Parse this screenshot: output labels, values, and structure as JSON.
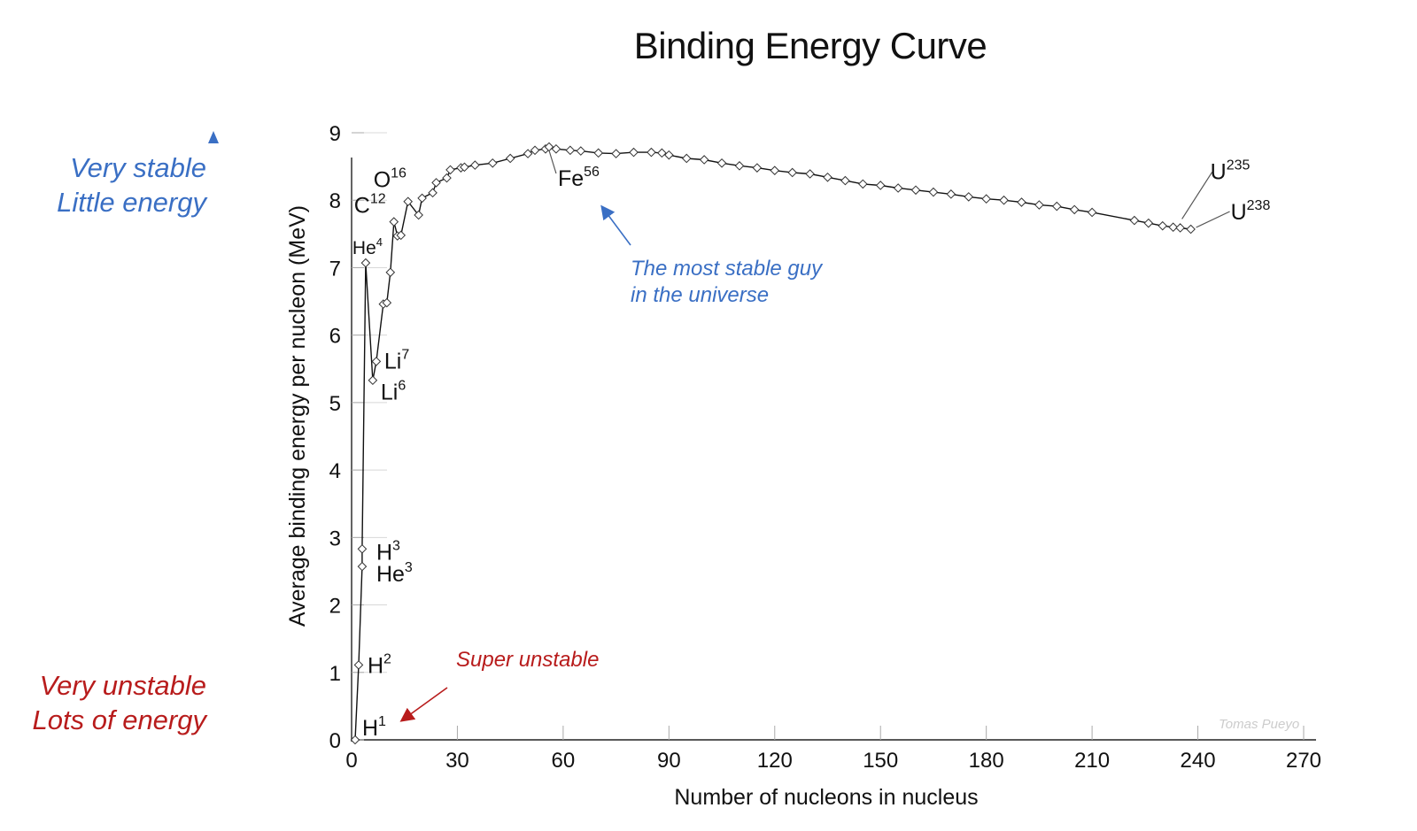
{
  "title": "Binding Energy Curve",
  "stability_scale": {
    "top_line1": "Very stable",
    "top_line2": "Little energy",
    "bottom_line1": "Very unstable",
    "bottom_line2": "Lots of energy",
    "top_color": "#3a6fc4",
    "bottom_color": "#b81c1c"
  },
  "annotations": {
    "most_stable_line1": "The most stable guy",
    "most_stable_line2": "in the universe",
    "super_unstable": "Super unstable",
    "watermark": "Tomas Pueyo"
  },
  "chart_data": {
    "type": "line",
    "title": "Binding Energy Curve",
    "xlabel": "Number of nucleons in nucleus",
    "ylabel": "Average binding energy per nucleon (MeV)",
    "xlim": [
      0,
      270
    ],
    "ylim": [
      0,
      9
    ],
    "xticks": [
      0,
      30,
      60,
      90,
      120,
      150,
      180,
      210,
      240,
      270
    ],
    "yticks": [
      0,
      1,
      2,
      3,
      4,
      5,
      6,
      7,
      8,
      9
    ],
    "series": [
      {
        "name": "Binding energy per nucleon",
        "x": [
          1,
          2,
          3,
          3,
          4,
          6,
          7,
          9,
          10,
          11,
          12,
          13,
          14,
          16,
          19,
          20,
          23,
          24,
          27,
          28,
          31,
          32,
          35,
          40,
          45,
          50,
          52,
          55,
          56,
          58,
          62,
          65,
          70,
          75,
          80,
          85,
          88,
          90,
          95,
          100,
          105,
          110,
          115,
          120,
          125,
          130,
          135,
          140,
          145,
          150,
          155,
          160,
          165,
          170,
          175,
          180,
          185,
          190,
          195,
          200,
          205,
          210,
          222,
          226,
          230,
          233,
          235,
          238
        ],
        "y": [
          0,
          1.11,
          2.57,
          2.83,
          7.07,
          5.33,
          5.61,
          6.46,
          6.48,
          6.93,
          7.68,
          7.47,
          7.48,
          7.98,
          7.78,
          8.03,
          8.11,
          8.26,
          8.33,
          8.45,
          8.48,
          8.49,
          8.52,
          8.55,
          8.62,
          8.69,
          8.74,
          8.76,
          8.79,
          8.76,
          8.74,
          8.73,
          8.7,
          8.69,
          8.71,
          8.71,
          8.7,
          8.67,
          8.62,
          8.6,
          8.55,
          8.51,
          8.48,
          8.44,
          8.41,
          8.39,
          8.34,
          8.29,
          8.24,
          8.22,
          8.18,
          8.15,
          8.12,
          8.09,
          8.05,
          8.02,
          8.0,
          7.97,
          7.93,
          7.91,
          7.86,
          7.82,
          7.7,
          7.66,
          7.62,
          7.6,
          7.59,
          7.57
        ]
      }
    ],
    "labels": [
      {
        "sym": "H",
        "sup": "1",
        "x": 1,
        "y": 0
      },
      {
        "sym": "H",
        "sup": "2",
        "x": 2,
        "y": 1.11
      },
      {
        "sym": "H",
        "sup": "3",
        "x": 3,
        "y": 2.83
      },
      {
        "sym": "He",
        "sup": "3",
        "x": 3,
        "y": 2.57
      },
      {
        "sym": "He",
        "sup": "4",
        "x": 4,
        "y": 7.07
      },
      {
        "sym": "Li",
        "sup": "6",
        "x": 6,
        "y": 5.33
      },
      {
        "sym": "Li",
        "sup": "7",
        "x": 7,
        "y": 5.61
      },
      {
        "sym": "C",
        "sup": "12",
        "x": 12,
        "y": 7.68
      },
      {
        "sym": "O",
        "sup": "16",
        "x": 16,
        "y": 7.98
      },
      {
        "sym": "Fe",
        "sup": "56",
        "x": 56,
        "y": 8.79
      },
      {
        "sym": "U",
        "sup": "235",
        "x": 235,
        "y": 7.59
      },
      {
        "sym": "U",
        "sup": "238",
        "x": 238,
        "y": 7.57
      }
    ]
  }
}
